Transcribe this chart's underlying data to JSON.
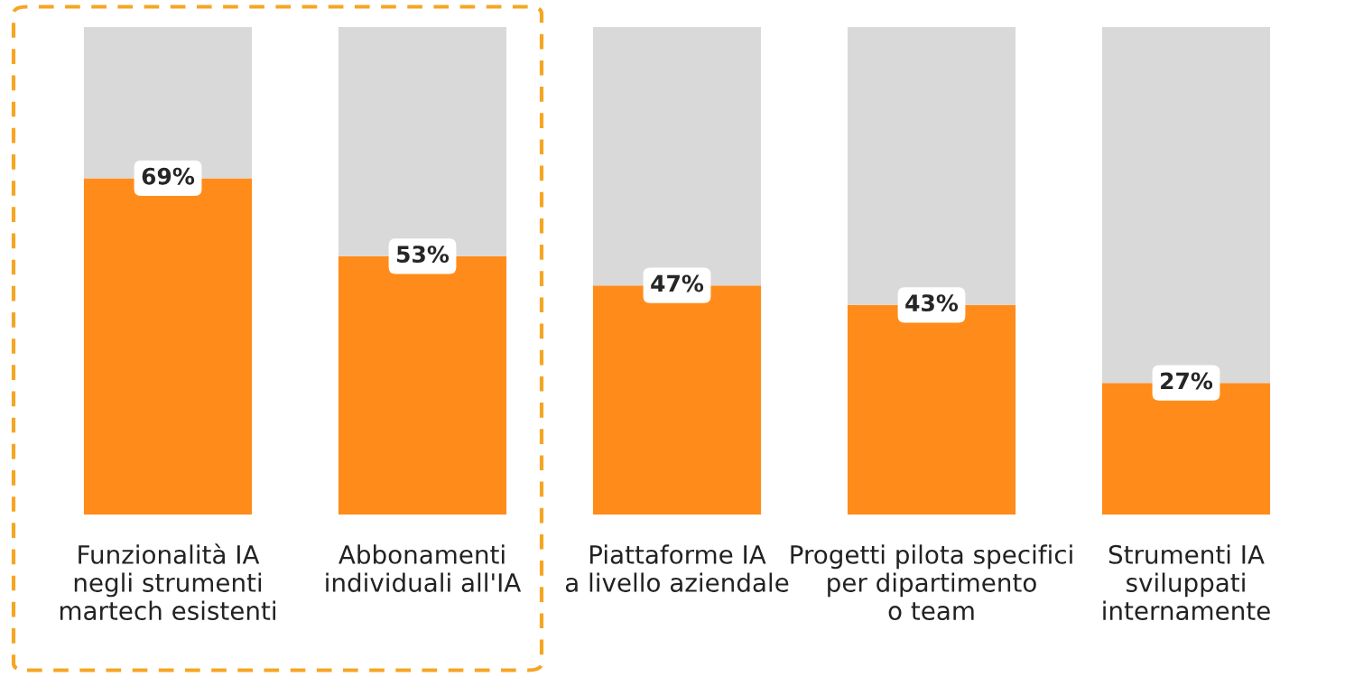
{
  "chart_data": {
    "type": "bar",
    "stacked": true,
    "categories": [
      "Funzionalità IA\nnegli strumenti\nmartech esistenti",
      "Abbonamenti\nindividuali all'IA",
      "Piattaforme IA\na livello aziendale",
      "Progetti pilota specifici\nper dipartimento\no team",
      "Strumenti IA\nsviluppati\ninternamente"
    ],
    "series": [
      {
        "color": "#ff8c1a",
        "values": [
          69,
          53,
          47,
          43,
          27
        ],
        "value_labels": [
          "69%",
          "53%",
          "47%",
          "43%",
          "27%"
        ]
      },
      {
        "color": "#d9d9d9",
        "values": [
          31,
          47,
          53,
          57,
          73
        ]
      }
    ],
    "ylim": [
      0,
      100
    ],
    "tick_labels": "x",
    "grid": false,
    "legend": false
  }
}
